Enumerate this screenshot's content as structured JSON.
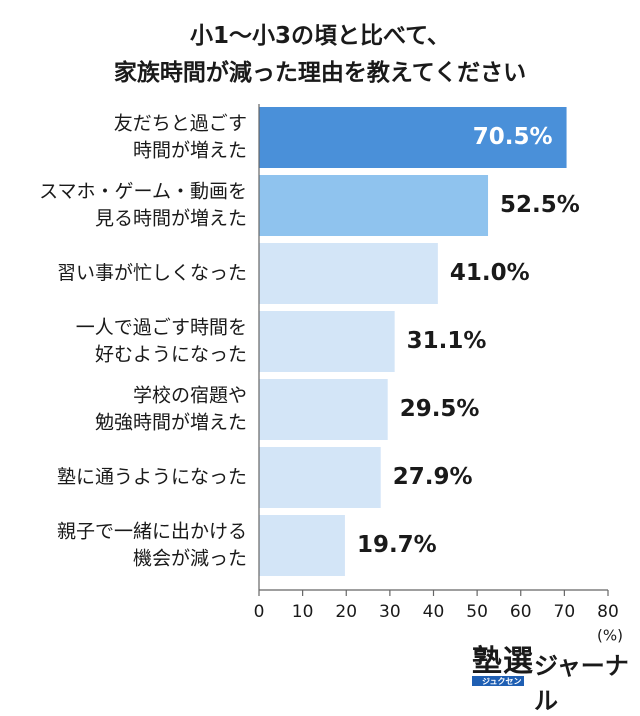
{
  "title_line1": "小1〜小3の頃と比べて、",
  "title_line2": "家族時間が減った理由を教えてください",
  "logo": {
    "kanji": "塾選",
    "katakana": "ジャーナル",
    "small": "ジュクセン"
  },
  "chart_data": {
    "type": "bar",
    "orientation": "horizontal",
    "categories": [
      [
        "友だちと過ごす",
        "時間が増えた"
      ],
      [
        "スマホ・ゲーム・動画を",
        "見る時間が増えた"
      ],
      [
        "習い事が忙しくなった"
      ],
      [
        "一人で過ごす時間を",
        "好むようになった"
      ],
      [
        "学校の宿題や",
        "勉強時間が増えた"
      ],
      [
        "塾に通うようになった"
      ],
      [
        "親子で一緒に出かける",
        "機会が減った"
      ]
    ],
    "values": [
      70.5,
      52.5,
      41.0,
      31.1,
      29.5,
      27.9,
      19.7
    ],
    "value_labels": [
      "70.5%",
      "52.5%",
      "41.0%",
      "31.1%",
      "29.5%",
      "27.9%",
      "19.7%"
    ],
    "xlim": [
      0,
      80
    ],
    "xticks": [
      0,
      10,
      20,
      30,
      40,
      50,
      60,
      70,
      80
    ],
    "unit_label": "(%)",
    "colors": [
      "#4a90d9",
      "#8fc3ee",
      "#d3e5f7"
    ],
    "label_colors": [
      "#ffffff",
      "#1a1a1a"
    ],
    "grid": false
  }
}
